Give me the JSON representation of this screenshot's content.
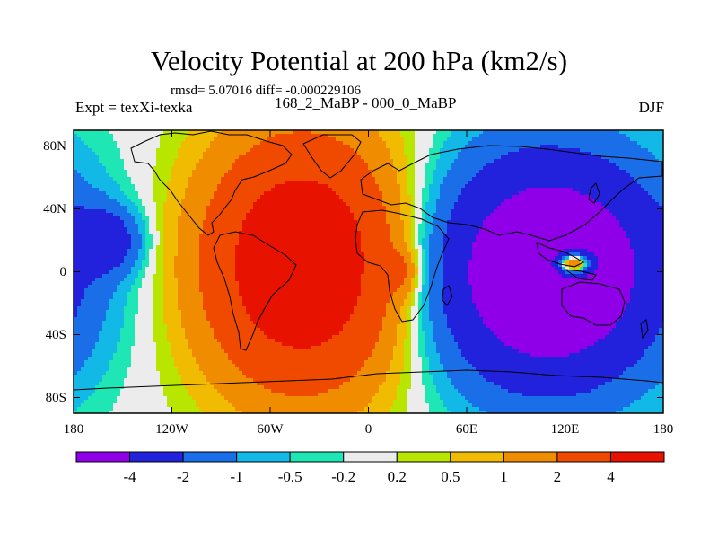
{
  "title": "Velocity Potential at 200 hPa (km2/s)",
  "stats": "rmsd= 5.07016 diff= -0.000229106",
  "experiment": "Expt = texXi-texka",
  "comparison": "168_2_MaBP - 000_0_MaBP",
  "season": "DJF",
  "map": {
    "lat_ticks": [
      {
        "label": "80N",
        "lat": 80
      },
      {
        "label": "40N",
        "lat": 40
      },
      {
        "label": "0",
        "lat": 0
      },
      {
        "label": "40S",
        "lat": -40
      },
      {
        "label": "80S",
        "lat": -80
      }
    ],
    "lon_ticks": [
      {
        "label": "180",
        "lon": -180
      },
      {
        "label": "120W",
        "lon": -120
      },
      {
        "label": "60W",
        "lon": -60
      },
      {
        "label": "0",
        "lon": 0
      },
      {
        "label": "60E",
        "lon": 60
      },
      {
        "label": "120E",
        "lon": 120
      },
      {
        "label": "180",
        "lon": 180
      }
    ],
    "lat_range": [
      -90,
      90
    ],
    "lon_range": [
      -180,
      180
    ],
    "field": {
      "background": 0.0,
      "centers": [
        {
          "name": "positive-maximum",
          "lon": -40,
          "lat": 5,
          "value": 6.5,
          "sx": 42,
          "sy": 55
        },
        {
          "name": "negative-minimum",
          "lon": 110,
          "lat": 0,
          "value": -7.2,
          "sx": 48,
          "sy": 50
        },
        {
          "name": "secondary-maximum",
          "lon": 125,
          "lat": 5,
          "value": 8.5,
          "sx": 9,
          "sy": 6
        },
        {
          "name": "weak-negative-pacific",
          "lon": -160,
          "lat": 20,
          "value": -2.8,
          "sx": 14,
          "sy": 14
        },
        {
          "name": "weak-positive-atlantic",
          "lon": 20,
          "lat": 0,
          "value": 1.5,
          "sx": 7,
          "sy": 10
        }
      ]
    }
  },
  "colorbar": {
    "labels": [
      "-4",
      "-2",
      "-1",
      "-0.5",
      "-0.2",
      "0.2",
      "0.5",
      "1",
      "2",
      "4"
    ],
    "levels": [
      -4,
      -2,
      -1,
      -0.5,
      -0.2,
      0.2,
      0.5,
      1,
      2,
      4
    ],
    "colors": [
      "#8f00e8",
      "#2222dd",
      "#1a6ee8",
      "#12b9e6",
      "#1ee6b4",
      "#ececec",
      "#b8e600",
      "#f0bb00",
      "#f08c00",
      "#f04a00",
      "#e81200"
    ]
  }
}
